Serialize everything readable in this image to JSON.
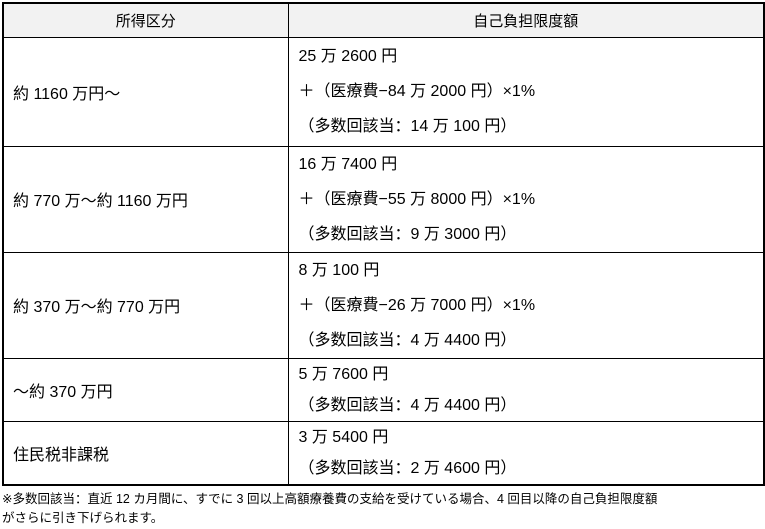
{
  "table": {
    "headers": {
      "income": "所得区分",
      "limit": "自己負担限度額"
    },
    "rows": [
      {
        "income": "約 1160 万円～",
        "lines": [
          "25 万 2600 円",
          "＋（医療費−84 万 2000 円）×1%",
          "（多数回該当：14 万 100 円）"
        ]
      },
      {
        "income": "約 770 万～約 1160 万円",
        "lines": [
          "16 万 7400 円",
          "＋（医療費−55 万 8000 円）×1%",
          "（多数回該当：9 万 3000 円）"
        ]
      },
      {
        "income": "約 370 万～約 770 万円",
        "lines": [
          "8 万 100 円",
          "＋（医療費−26 万 7000 円）×1%",
          "（多数回該当：4 万 4400 円）"
        ]
      },
      {
        "income": "～約 370 万円",
        "lines": [
          "5 万 7600 円",
          "（多数回該当：4 万 4400 円）"
        ]
      },
      {
        "income": "住民税非課税",
        "lines": [
          "3 万 5400 円",
          "（多数回該当：2 万 4600 円）"
        ]
      }
    ]
  },
  "footnote": {
    "lines": [
      "※多数回該当：直近 12 カ月間に、すでに 3 回以上高額療養費の支給を受けている場合、4 回目以降の自己負担限度額",
      "がさらに引き下げられます。"
    ]
  },
  "colors": {
    "header_bg": "#f2f2f2",
    "border": "#000000",
    "text": "#000000",
    "background": "#ffffff"
  }
}
